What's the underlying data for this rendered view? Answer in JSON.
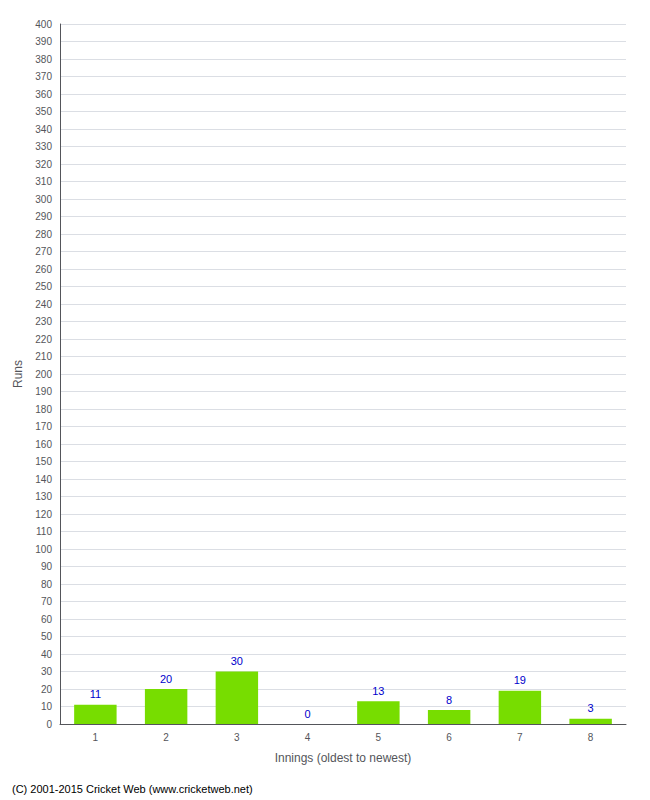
{
  "chart_data": {
    "type": "bar",
    "xlabel": "Innings (oldest to newest)",
    "ylabel": "Runs",
    "categories": [
      "1",
      "2",
      "3",
      "4",
      "5",
      "6",
      "7",
      "8"
    ],
    "values": [
      11,
      20,
      30,
      0,
      13,
      8,
      19,
      3
    ],
    "color": "#77dd00",
    "ylim": [
      0,
      400
    ],
    "yticks": [
      0,
      10,
      20,
      30,
      40,
      50,
      60,
      70,
      80,
      90,
      100,
      110,
      120,
      130,
      140,
      150,
      160,
      170,
      180,
      190,
      200,
      210,
      220,
      230,
      240,
      250,
      260,
      270,
      280,
      290,
      300,
      310,
      320,
      330,
      340,
      350,
      360,
      370,
      380,
      390,
      400
    ],
    "grid": true,
    "data_labels": true,
    "annotations": [
      "(C) 2001-2015 Cricket Web (www.cricketweb.net)"
    ]
  }
}
